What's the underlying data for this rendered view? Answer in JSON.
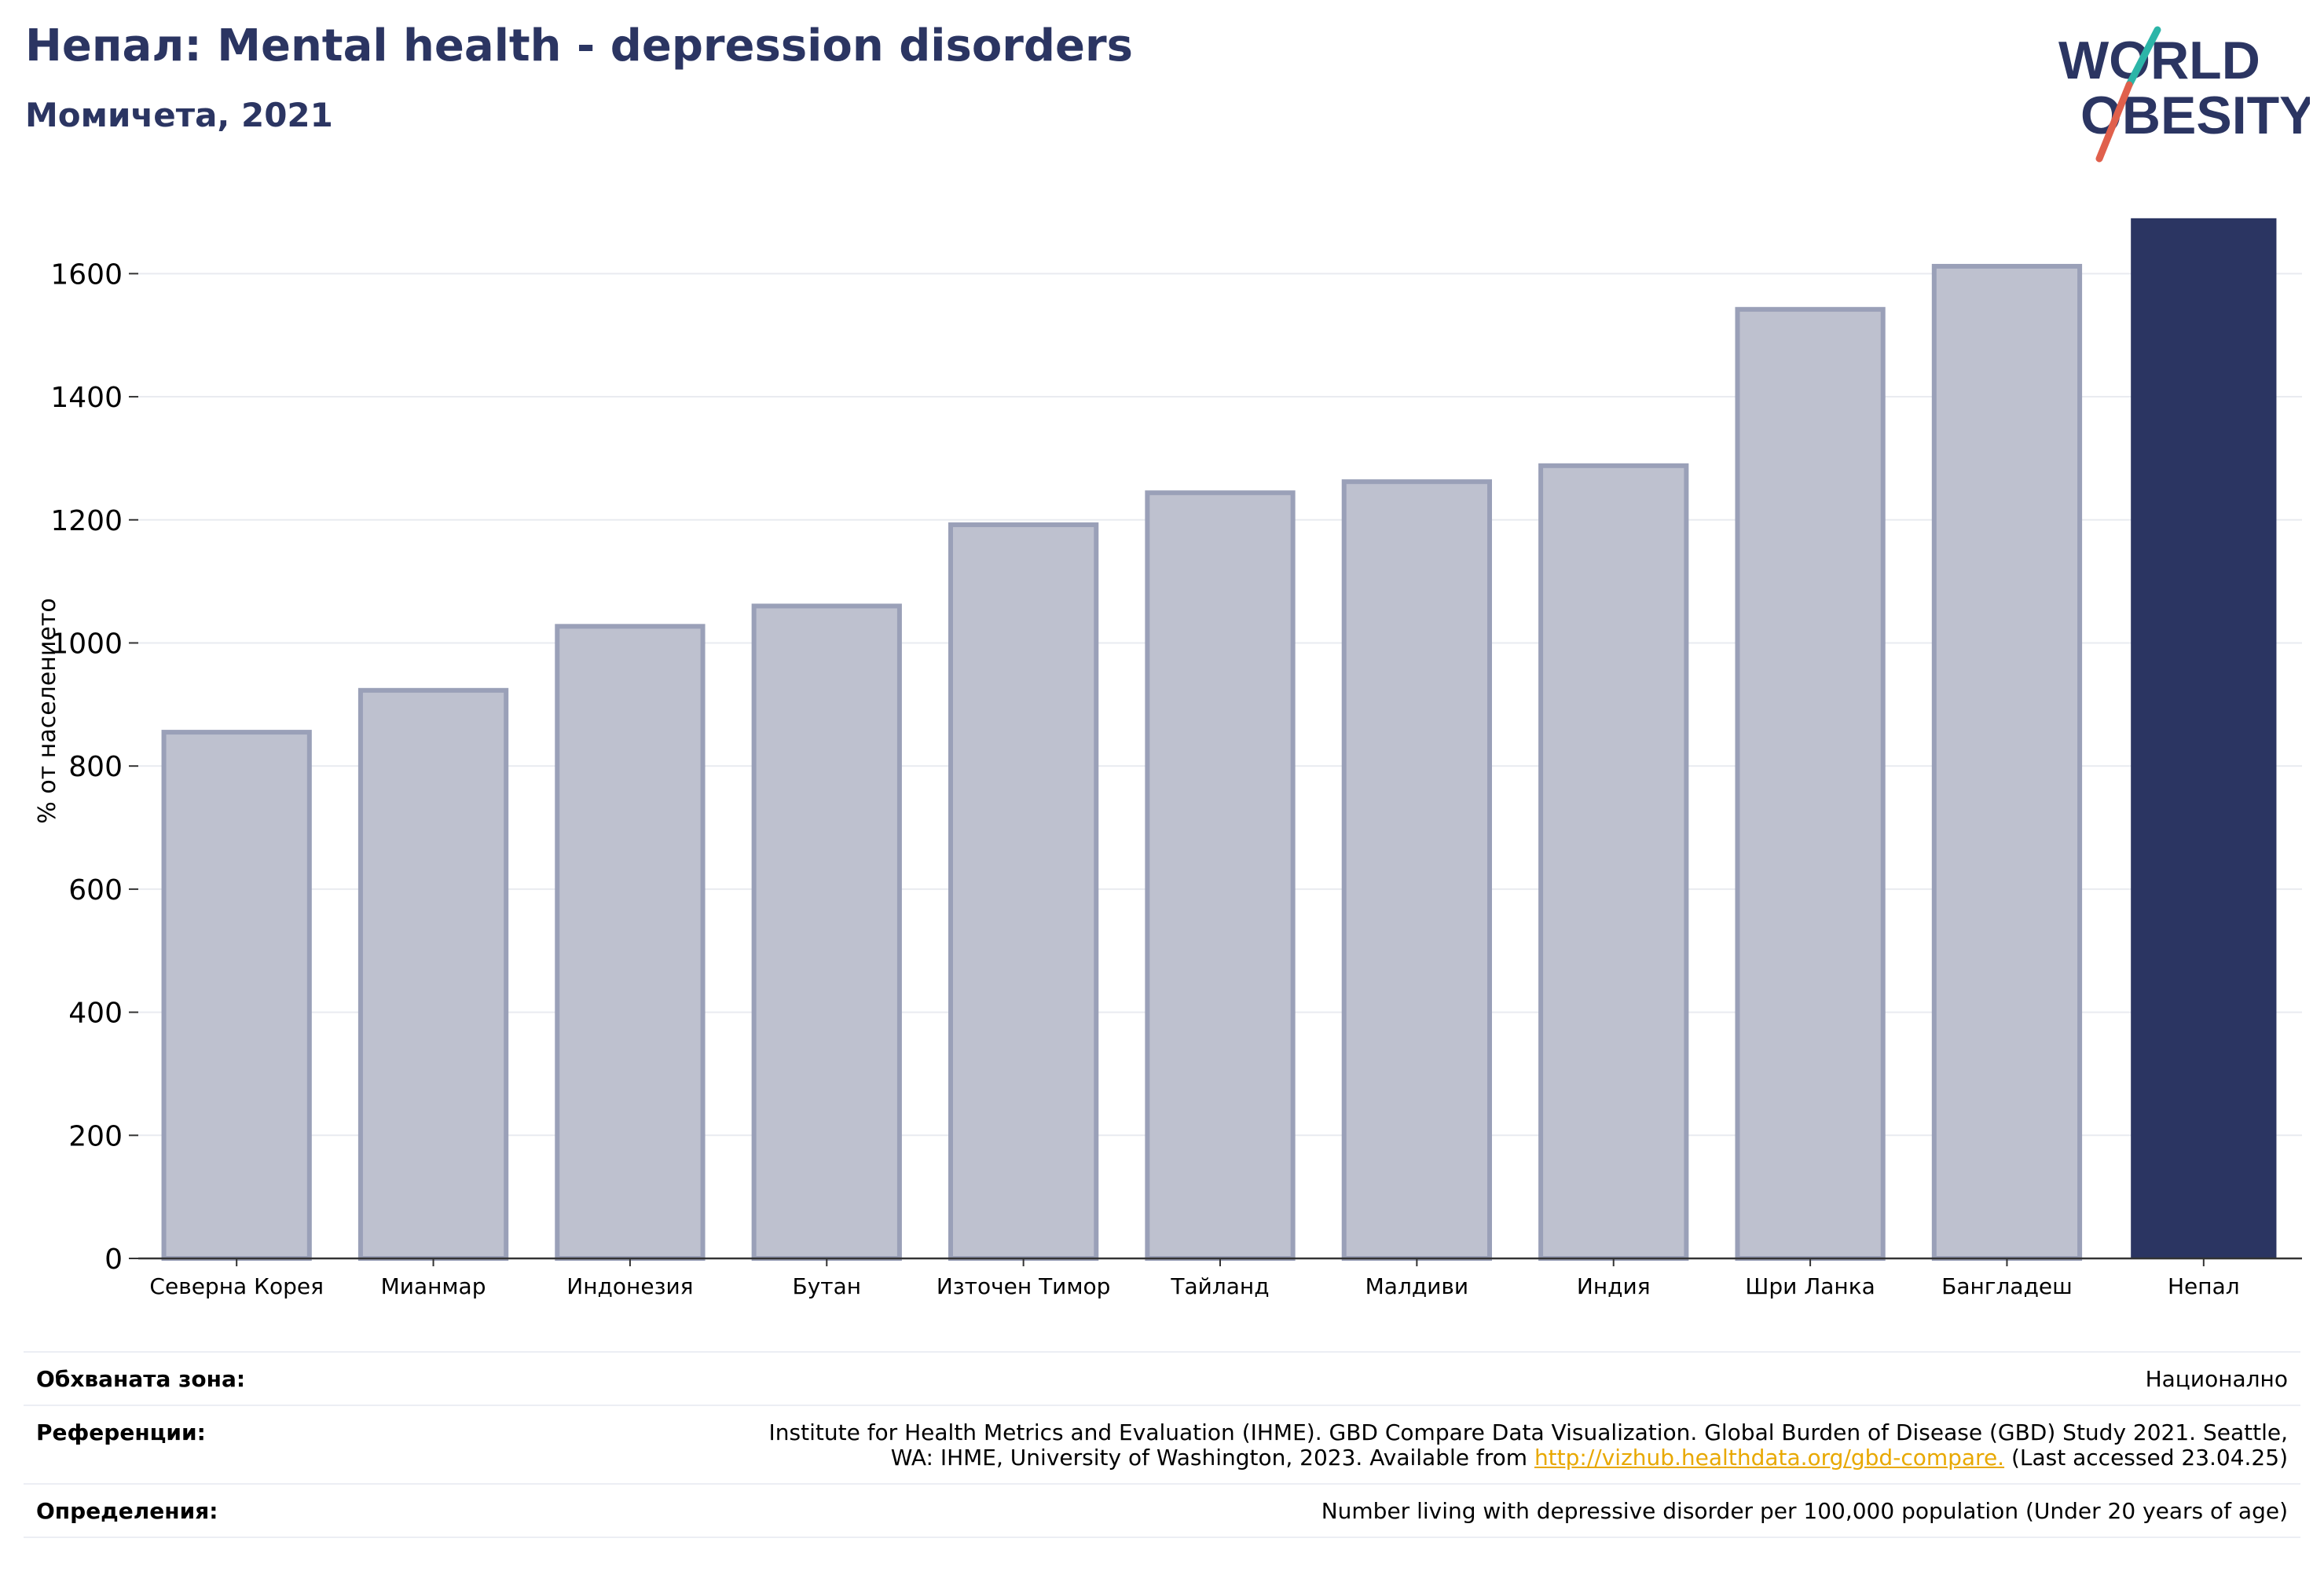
{
  "header": {
    "title": "Непал: Mental health - depression disorders",
    "subtitle": "Момичета, 2021"
  },
  "logo": {
    "line1": "WORLD",
    "line2": "OBESITY"
  },
  "colors": {
    "highlight": "#2b3562",
    "others_fill": "#bec1cf",
    "others_stroke": "#9aa0b8",
    "slash_top": "#2cb5a8",
    "slash_bottom": "#e0604c",
    "link": "#e8a800"
  },
  "chart_data": {
    "type": "bar",
    "title": "Непал: Mental health - depression disorders",
    "subtitle": "Момичета, 2021",
    "ylabel": "% от населението",
    "xlabel": "",
    "categories": [
      "Северна Корея",
      "Мианмар",
      "Индонезия",
      "Бутан",
      "Източен Тимор",
      "Тайланд",
      "Малдиви",
      "Индия",
      "Шри Ланка",
      "Бангладеш",
      "Непал"
    ],
    "values": [
      855,
      923,
      1027,
      1060,
      1192,
      1244,
      1262,
      1288,
      1542,
      1612,
      1690
    ],
    "highlight": "Непал",
    "ylim": [
      0,
      1700
    ],
    "yticks": [
      0,
      200,
      400,
      600,
      800,
      1000,
      1200,
      1400,
      1600
    ],
    "grid": true,
    "legend": "none"
  },
  "info": {
    "coverage_label": "Обхваната зона:",
    "coverage_value": "Национално",
    "references_label": "Референции:",
    "references_line1": "Institute for Health Metrics and Evaluation (IHME). GBD Compare Data Visualization. Global Burden of Disease (GBD) Study 2021. Seattle,",
    "references_line2_pre": "WA: IHME, University of Washington, 2023. Available from ",
    "references_link": "http://vizhub.healthdata.org/gbd-compare.",
    "references_line2_post": " (Last accessed 23.04.25)",
    "definitions_label": "Определения:",
    "definitions_value": "Number living with depressive disorder per 100,000 population (Under 20 years of age)"
  }
}
